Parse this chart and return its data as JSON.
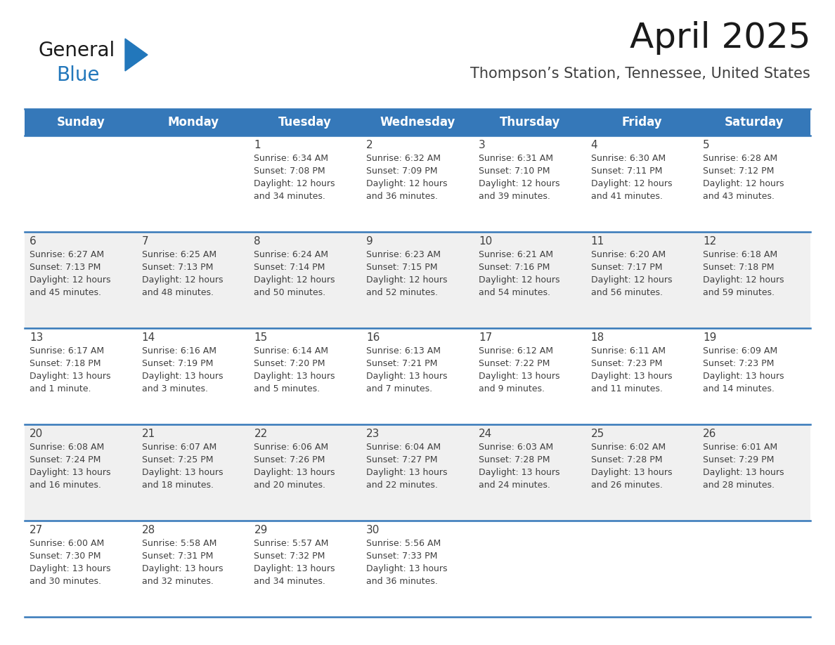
{
  "title": "April 2025",
  "subtitle": "Thompson’s Station, Tennessee, United States",
  "header_color": "#3578B9",
  "header_text_color": "#FFFFFF",
  "day_names": [
    "Sunday",
    "Monday",
    "Tuesday",
    "Wednesday",
    "Thursday",
    "Friday",
    "Saturday"
  ],
  "bg_color": "#FFFFFF",
  "row_bg": [
    "#FFFFFF",
    "#F0F0F0",
    "#FFFFFF",
    "#F0F0F0",
    "#FFFFFF"
  ],
  "border_color": "#3578B9",
  "text_color": "#404040",
  "logo_general_color": "#1a1a1a",
  "logo_blue_color": "#2277BB",
  "logo_tri_color": "#2277BB",
  "title_fontsize": 36,
  "subtitle_fontsize": 15,
  "header_fontsize": 12,
  "day_num_fontsize": 11,
  "info_fontsize": 9,
  "weeks": [
    [
      {
        "day": null,
        "info": null
      },
      {
        "day": null,
        "info": null
      },
      {
        "day": 1,
        "info": "Sunrise: 6:34 AM\nSunset: 7:08 PM\nDaylight: 12 hours\nand 34 minutes."
      },
      {
        "day": 2,
        "info": "Sunrise: 6:32 AM\nSunset: 7:09 PM\nDaylight: 12 hours\nand 36 minutes."
      },
      {
        "day": 3,
        "info": "Sunrise: 6:31 AM\nSunset: 7:10 PM\nDaylight: 12 hours\nand 39 minutes."
      },
      {
        "day": 4,
        "info": "Sunrise: 6:30 AM\nSunset: 7:11 PM\nDaylight: 12 hours\nand 41 minutes."
      },
      {
        "day": 5,
        "info": "Sunrise: 6:28 AM\nSunset: 7:12 PM\nDaylight: 12 hours\nand 43 minutes."
      }
    ],
    [
      {
        "day": 6,
        "info": "Sunrise: 6:27 AM\nSunset: 7:13 PM\nDaylight: 12 hours\nand 45 minutes."
      },
      {
        "day": 7,
        "info": "Sunrise: 6:25 AM\nSunset: 7:13 PM\nDaylight: 12 hours\nand 48 minutes."
      },
      {
        "day": 8,
        "info": "Sunrise: 6:24 AM\nSunset: 7:14 PM\nDaylight: 12 hours\nand 50 minutes."
      },
      {
        "day": 9,
        "info": "Sunrise: 6:23 AM\nSunset: 7:15 PM\nDaylight: 12 hours\nand 52 minutes."
      },
      {
        "day": 10,
        "info": "Sunrise: 6:21 AM\nSunset: 7:16 PM\nDaylight: 12 hours\nand 54 minutes."
      },
      {
        "day": 11,
        "info": "Sunrise: 6:20 AM\nSunset: 7:17 PM\nDaylight: 12 hours\nand 56 minutes."
      },
      {
        "day": 12,
        "info": "Sunrise: 6:18 AM\nSunset: 7:18 PM\nDaylight: 12 hours\nand 59 minutes."
      }
    ],
    [
      {
        "day": 13,
        "info": "Sunrise: 6:17 AM\nSunset: 7:18 PM\nDaylight: 13 hours\nand 1 minute."
      },
      {
        "day": 14,
        "info": "Sunrise: 6:16 AM\nSunset: 7:19 PM\nDaylight: 13 hours\nand 3 minutes."
      },
      {
        "day": 15,
        "info": "Sunrise: 6:14 AM\nSunset: 7:20 PM\nDaylight: 13 hours\nand 5 minutes."
      },
      {
        "day": 16,
        "info": "Sunrise: 6:13 AM\nSunset: 7:21 PM\nDaylight: 13 hours\nand 7 minutes."
      },
      {
        "day": 17,
        "info": "Sunrise: 6:12 AM\nSunset: 7:22 PM\nDaylight: 13 hours\nand 9 minutes."
      },
      {
        "day": 18,
        "info": "Sunrise: 6:11 AM\nSunset: 7:23 PM\nDaylight: 13 hours\nand 11 minutes."
      },
      {
        "day": 19,
        "info": "Sunrise: 6:09 AM\nSunset: 7:23 PM\nDaylight: 13 hours\nand 14 minutes."
      }
    ],
    [
      {
        "day": 20,
        "info": "Sunrise: 6:08 AM\nSunset: 7:24 PM\nDaylight: 13 hours\nand 16 minutes."
      },
      {
        "day": 21,
        "info": "Sunrise: 6:07 AM\nSunset: 7:25 PM\nDaylight: 13 hours\nand 18 minutes."
      },
      {
        "day": 22,
        "info": "Sunrise: 6:06 AM\nSunset: 7:26 PM\nDaylight: 13 hours\nand 20 minutes."
      },
      {
        "day": 23,
        "info": "Sunrise: 6:04 AM\nSunset: 7:27 PM\nDaylight: 13 hours\nand 22 minutes."
      },
      {
        "day": 24,
        "info": "Sunrise: 6:03 AM\nSunset: 7:28 PM\nDaylight: 13 hours\nand 24 minutes."
      },
      {
        "day": 25,
        "info": "Sunrise: 6:02 AM\nSunset: 7:28 PM\nDaylight: 13 hours\nand 26 minutes."
      },
      {
        "day": 26,
        "info": "Sunrise: 6:01 AM\nSunset: 7:29 PM\nDaylight: 13 hours\nand 28 minutes."
      }
    ],
    [
      {
        "day": 27,
        "info": "Sunrise: 6:00 AM\nSunset: 7:30 PM\nDaylight: 13 hours\nand 30 minutes."
      },
      {
        "day": 28,
        "info": "Sunrise: 5:58 AM\nSunset: 7:31 PM\nDaylight: 13 hours\nand 32 minutes."
      },
      {
        "day": 29,
        "info": "Sunrise: 5:57 AM\nSunset: 7:32 PM\nDaylight: 13 hours\nand 34 minutes."
      },
      {
        "day": 30,
        "info": "Sunrise: 5:56 AM\nSunset: 7:33 PM\nDaylight: 13 hours\nand 36 minutes."
      },
      {
        "day": null,
        "info": null
      },
      {
        "day": null,
        "info": null
      },
      {
        "day": null,
        "info": null
      }
    ]
  ]
}
